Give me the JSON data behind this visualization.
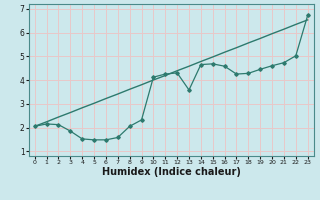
{
  "title": "",
  "xlabel": "Humidex (Indice chaleur)",
  "bg_color": "#cce8ec",
  "grid_color": "#e8c8c8",
  "line_color": "#2d7a6e",
  "xlim": [
    -0.5,
    23.5
  ],
  "ylim": [
    0.8,
    7.2
  ],
  "yticks": [
    1,
    2,
    3,
    4,
    5,
    6,
    7
  ],
  "xticks": [
    0,
    1,
    2,
    3,
    4,
    5,
    6,
    7,
    8,
    9,
    10,
    11,
    12,
    13,
    14,
    15,
    16,
    17,
    18,
    19,
    20,
    21,
    22,
    23
  ],
  "line1_x": [
    0,
    1,
    2,
    3,
    4,
    5,
    6,
    7,
    8,
    9,
    10,
    11,
    12,
    13,
    14,
    15,
    16,
    17,
    18,
    19,
    20,
    21,
    22,
    23
  ],
  "line1_y": [
    2.05,
    2.24,
    2.44,
    2.63,
    2.83,
    3.02,
    3.22,
    3.41,
    3.61,
    3.8,
    4.0,
    4.19,
    4.39,
    4.58,
    4.78,
    4.97,
    5.17,
    5.36,
    5.56,
    5.75,
    5.95,
    6.14,
    6.34,
    6.53
  ],
  "line2_x": [
    0,
    1,
    2,
    3,
    4,
    5,
    6,
    7,
    8,
    9,
    10,
    11,
    12,
    13,
    14,
    15,
    16,
    17,
    18,
    19,
    20,
    21,
    22,
    23
  ],
  "line2_y": [
    2.05,
    2.15,
    2.12,
    1.85,
    1.52,
    1.48,
    1.48,
    1.58,
    2.05,
    2.32,
    4.12,
    4.25,
    4.3,
    3.58,
    4.65,
    4.68,
    4.58,
    4.25,
    4.28,
    4.45,
    4.6,
    4.73,
    5.02,
    6.72
  ],
  "tick_fontsize": 5.5,
  "xlabel_fontsize": 7,
  "xlabel_fontweight": "bold"
}
